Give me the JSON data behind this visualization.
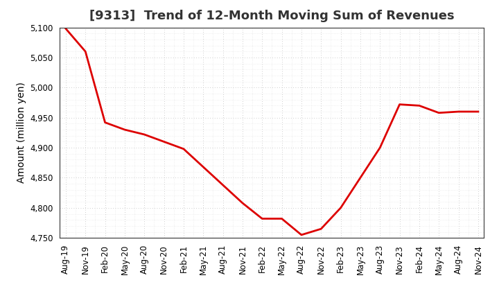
{
  "title": "[9313]  Trend of 12-Month Moving Sum of Revenues",
  "ylabel": "Amount (million yen)",
  "background_color": "#ffffff",
  "line_color": "#dd0000",
  "grid_color": "#bbbbbb",
  "ylim": [
    4750,
    5100
  ],
  "yticks": [
    4750,
    4800,
    4850,
    4900,
    4950,
    5000,
    5050,
    5100
  ],
  "values": [
    5098,
    5060,
    4942,
    4930,
    4922,
    4910,
    4898,
    4868,
    4838,
    4808,
    4782,
    4782,
    4755,
    4765,
    4800,
    4850,
    4900,
    4972,
    4970,
    4958,
    4960,
    4960
  ],
  "xtick_labels": [
    "Aug-19",
    "Nov-19",
    "Feb-20",
    "May-20",
    "Aug-20",
    "Nov-20",
    "Feb-21",
    "May-21",
    "Aug-21",
    "Nov-21",
    "Feb-22",
    "May-22",
    "Aug-22",
    "Nov-22",
    "Feb-23",
    "May-23",
    "Aug-23",
    "Nov-23",
    "Feb-24",
    "May-24",
    "Aug-24",
    "Nov-24"
  ],
  "title_fontsize": 13,
  "label_fontsize": 10,
  "tick_fontsize": 8.5
}
